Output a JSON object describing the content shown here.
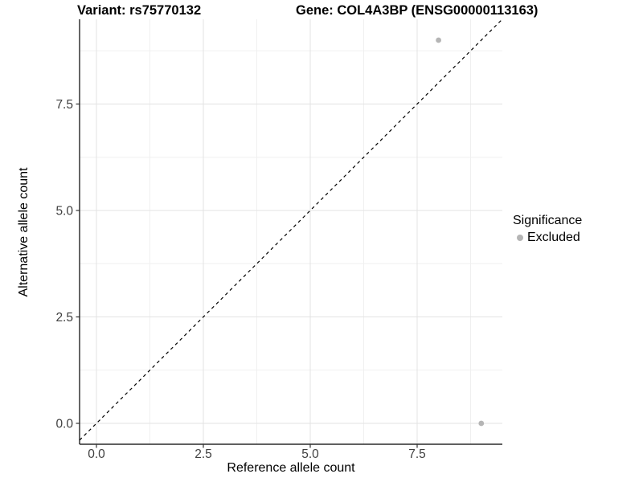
{
  "chart_data": {
    "type": "scatter",
    "titles": [
      "Variant: rs75770132",
      "Gene: COL4A3BP (ENSG00000113163)"
    ],
    "xlabel": "Reference allele count",
    "ylabel": "Alternative allele count",
    "x_ticks": [
      "0.0",
      "2.5",
      "5.0",
      "7.5"
    ],
    "y_ticks": [
      "0.0",
      "2.5",
      "5.0",
      "7.5"
    ],
    "x_minor_ticks": [
      1.25,
      3.75,
      6.25,
      8.75
    ],
    "y_minor_ticks": [
      1.25,
      3.75,
      6.25,
      8.75
    ],
    "xlim": [
      -0.4,
      9.5
    ],
    "ylim": [
      -0.45,
      9.45
    ],
    "grid": true,
    "series": [
      {
        "name": "Excluded",
        "color": "#b5b5b5",
        "points": [
          [
            8,
            9
          ],
          [
            9,
            0
          ]
        ]
      }
    ],
    "reference_line": {
      "kind": "y = x",
      "style": "dashed",
      "color": "#000000"
    },
    "legend": {
      "position": "right",
      "title": "Significance",
      "entries": [
        {
          "label": "Excluded",
          "color": "#b5b5b5"
        }
      ]
    },
    "colors": {
      "grid_major": "#e3e3e3",
      "grid_minor": "#f0f0f0",
      "axis_line": "#000000",
      "tick_label": "#404040"
    }
  }
}
